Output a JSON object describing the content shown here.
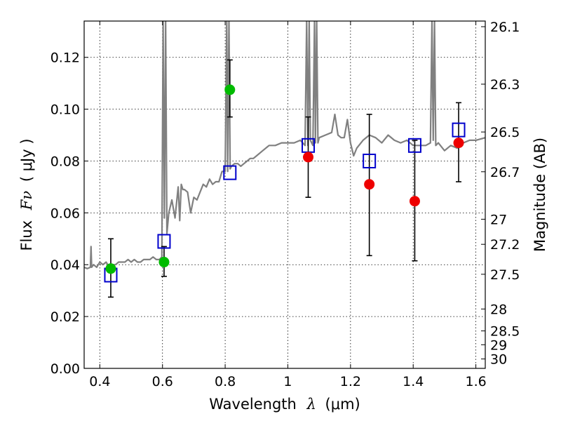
{
  "chart_data": {
    "type": "scatter",
    "xlabel_text": "Wavelength",
    "xlabel_symbol": "λ",
    "xlabel_unit": "(μm)",
    "ylabel_text": "Flux",
    "ylabel_symbol": "Fν",
    "ylabel_unit": "( μJy )",
    "y2label": "Magnitude (AB)",
    "xlim": [
      0.35,
      1.63
    ],
    "ylim": [
      0.0,
      0.134
    ],
    "xticks": [
      0.4,
      0.6,
      0.8,
      1.0,
      1.2,
      1.4,
      1.6
    ],
    "xtick_labels": [
      "0.4",
      "0.6",
      "0.8",
      "1",
      "1.2",
      "1.4",
      "1.6"
    ],
    "yticks": [
      0.0,
      0.02,
      0.04,
      0.06,
      0.08,
      0.1,
      0.12
    ],
    "ytick_labels": [
      "0.00",
      "0.02",
      "0.04",
      "0.06",
      "0.08",
      "0.10",
      "0.12"
    ],
    "mag_ticks": [
      26.1,
      26.3,
      26.5,
      26.7,
      27,
      27.2,
      27.5,
      28,
      28.5,
      29,
      30
    ],
    "mag_tick_labels": [
      "26.1",
      "26.3",
      "26.5",
      "26.7",
      "27",
      "27.2",
      "27.5",
      "28",
      "28.5",
      "29",
      "30"
    ],
    "grid": true,
    "series": [
      {
        "name": "model-spectrum",
        "kind": "line",
        "color": "#808080",
        "x": [
          0.35,
          0.36,
          0.37,
          0.372,
          0.374,
          0.38,
          0.39,
          0.4,
          0.41,
          0.42,
          0.43,
          0.44,
          0.45,
          0.46,
          0.47,
          0.48,
          0.49,
          0.5,
          0.51,
          0.52,
          0.53,
          0.54,
          0.55,
          0.56,
          0.57,
          0.58,
          0.59,
          0.598,
          0.602,
          0.606,
          0.61,
          0.614,
          0.62,
          0.63,
          0.64,
          0.65,
          0.655,
          0.66,
          0.665,
          0.67,
          0.68,
          0.69,
          0.7,
          0.71,
          0.72,
          0.73,
          0.74,
          0.75,
          0.76,
          0.77,
          0.78,
          0.79,
          0.8,
          0.805,
          0.808,
          0.812,
          0.816,
          0.82,
          0.83,
          0.84,
          0.85,
          0.86,
          0.87,
          0.88,
          0.89,
          0.9,
          0.92,
          0.94,
          0.96,
          0.98,
          1.0,
          1.02,
          1.04,
          1.055,
          1.06,
          1.064,
          1.068,
          1.072,
          1.08,
          1.085,
          1.088,
          1.092,
          1.096,
          1.1,
          1.12,
          1.14,
          1.15,
          1.16,
          1.17,
          1.18,
          1.19,
          1.2,
          1.21,
          1.22,
          1.24,
          1.26,
          1.28,
          1.3,
          1.32,
          1.34,
          1.36,
          1.38,
          1.4,
          1.42,
          1.44,
          1.455,
          1.46,
          1.464,
          1.468,
          1.472,
          1.48,
          1.5,
          1.52,
          1.54,
          1.56,
          1.58,
          1.6,
          1.63
        ],
        "y": [
          0.039,
          0.0385,
          0.039,
          0.047,
          0.039,
          0.04,
          0.039,
          0.041,
          0.04,
          0.041,
          0.039,
          0.04,
          0.04,
          0.041,
          0.041,
          0.041,
          0.042,
          0.041,
          0.042,
          0.041,
          0.041,
          0.042,
          0.042,
          0.042,
          0.043,
          0.042,
          0.042,
          0.043,
          0.134,
          0.058,
          0.134,
          0.052,
          0.06,
          0.065,
          0.058,
          0.07,
          0.057,
          0.071,
          0.069,
          0.069,
          0.068,
          0.06,
          0.066,
          0.065,
          0.068,
          0.071,
          0.07,
          0.073,
          0.071,
          0.072,
          0.072,
          0.076,
          0.076,
          0.134,
          0.076,
          0.134,
          0.077,
          0.078,
          0.079,
          0.079,
          0.078,
          0.079,
          0.08,
          0.081,
          0.081,
          0.082,
          0.084,
          0.086,
          0.086,
          0.087,
          0.087,
          0.087,
          0.088,
          0.086,
          0.134,
          0.086,
          0.134,
          0.088,
          0.086,
          0.134,
          0.087,
          0.134,
          0.087,
          0.089,
          0.09,
          0.091,
          0.098,
          0.09,
          0.089,
          0.089,
          0.096,
          0.087,
          0.082,
          0.085,
          0.088,
          0.09,
          0.089,
          0.087,
          0.09,
          0.088,
          0.087,
          0.088,
          0.086,
          0.086,
          0.086,
          0.087,
          0.134,
          0.088,
          0.134,
          0.086,
          0.087,
          0.084,
          0.086,
          0.085,
          0.087,
          0.088,
          0.088,
          0.089
        ]
      },
      {
        "name": "model-photometry",
        "kind": "open-square",
        "color": "#0000cc",
        "x": [
          0.435,
          0.605,
          0.815,
          1.065,
          1.26,
          1.405,
          1.545
        ],
        "y": [
          0.036,
          0.049,
          0.0755,
          0.086,
          0.08,
          0.086,
          0.092
        ]
      },
      {
        "name": "observed-green",
        "kind": "filled-circle",
        "color": "#00bb00",
        "x": [
          0.435,
          0.605,
          0.815
        ],
        "y": [
          0.0385,
          0.041,
          0.1075
        ],
        "yerr_low": [
          0.0275,
          0.0355,
          0.097
        ],
        "yerr_high": [
          0.05,
          0.047,
          0.119
        ]
      },
      {
        "name": "observed-red",
        "kind": "filled-circle",
        "color": "#ee0000",
        "x": [
          1.065,
          1.26,
          1.405,
          1.545
        ],
        "y": [
          0.0815,
          0.071,
          0.0645,
          0.087
        ],
        "yerr_low": [
          0.066,
          0.0435,
          0.0415,
          0.072
        ],
        "yerr_high": [
          0.097,
          0.098,
          0.088,
          0.1025
        ]
      }
    ]
  }
}
